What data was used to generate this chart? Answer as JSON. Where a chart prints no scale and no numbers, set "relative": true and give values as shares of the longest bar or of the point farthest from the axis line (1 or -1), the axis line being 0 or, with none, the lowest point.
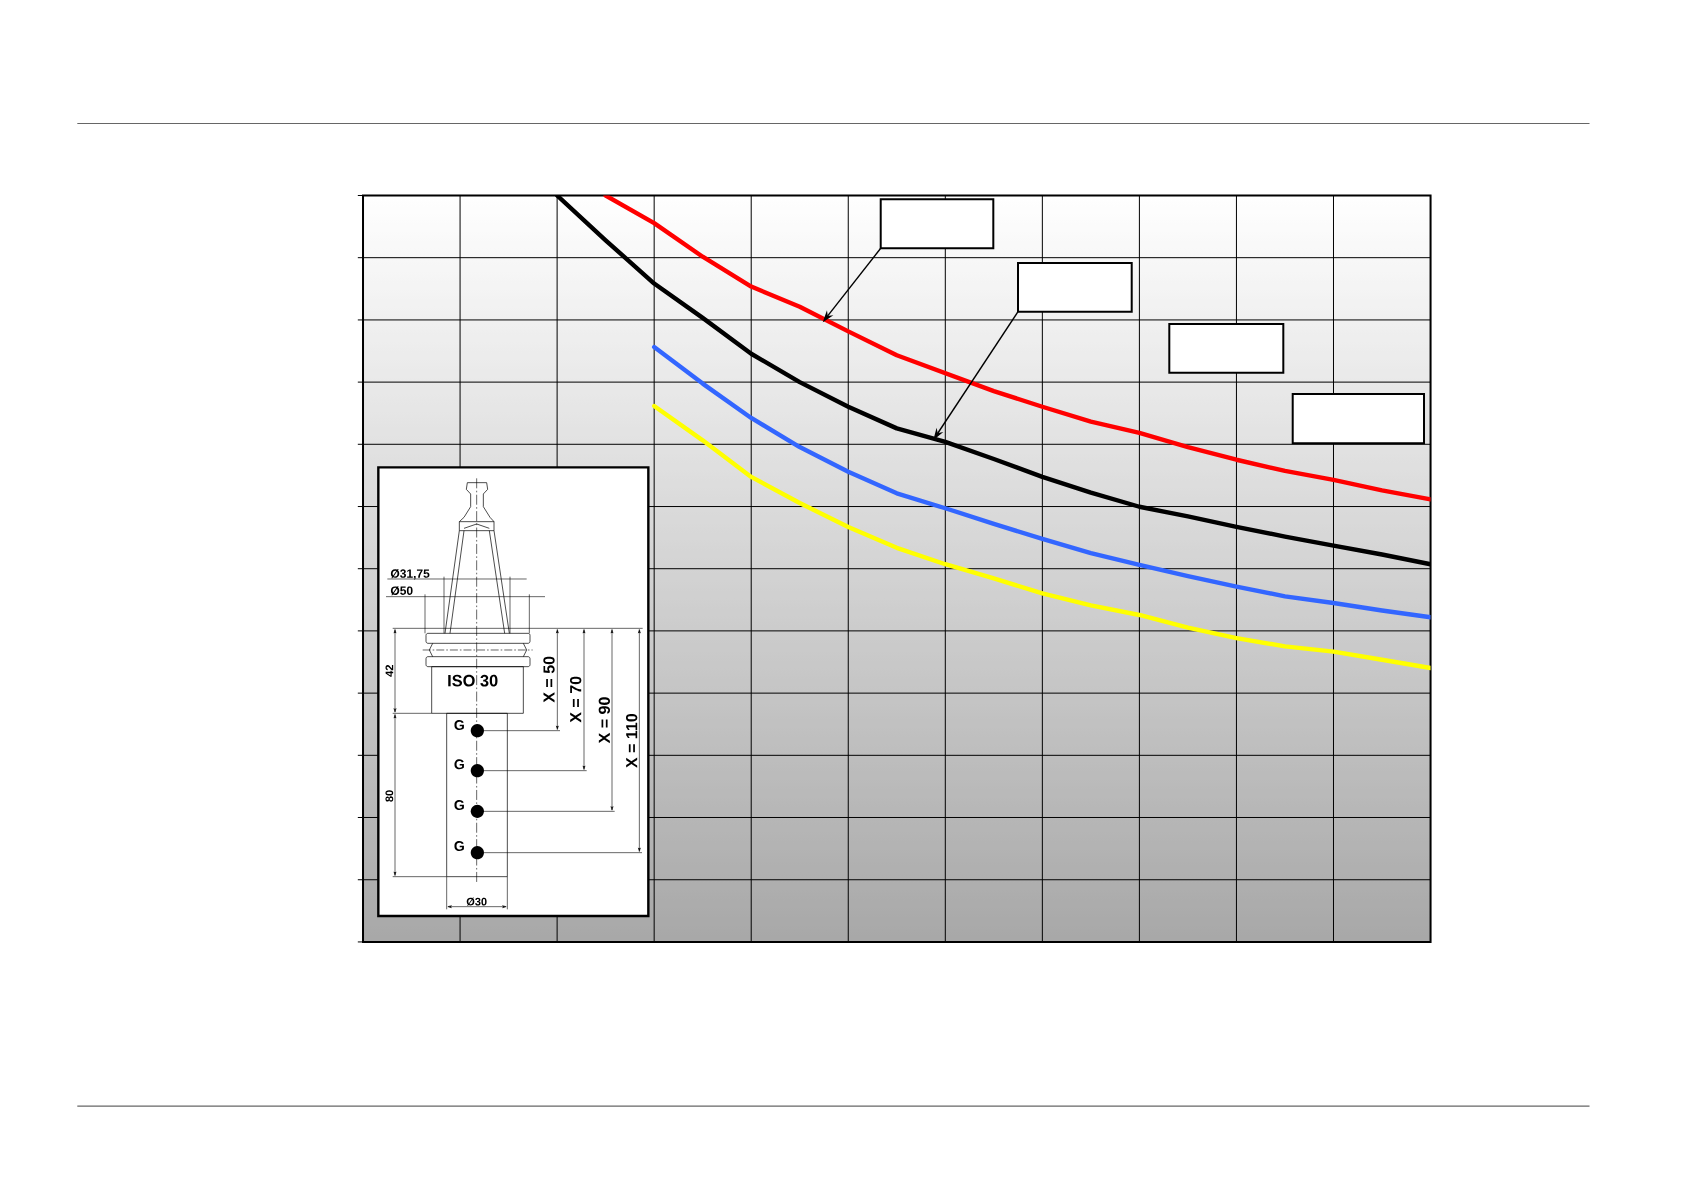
{
  "chart_data": {
    "type": "line",
    "relative": true,
    "grid": true,
    "categories": [
      null,
      null,
      null,
      null,
      null,
      null,
      null,
      null,
      null,
      null,
      null,
      null,
      null,
      null,
      null,
      null,
      null,
      null,
      null,
      null,
      null,
      null,
      null
    ],
    "series": [
      {
        "color": "#ff0000",
        "values": [
          null,
          null,
          null,
          null,
          null,
          1,
          0.963,
          0.918,
          0.878,
          0.851,
          0.818,
          0.786,
          0.762,
          0.738,
          0.717,
          0.697,
          0.682,
          0.663,
          0.646,
          0.631,
          0.619,
          0.605,
          0.593
        ]
      },
      {
        "color": "#000000",
        "values": [
          null,
          null,
          null,
          null,
          1,
          0.94,
          0.882,
          0.836,
          0.788,
          0.75,
          0.717,
          0.688,
          0.67,
          0.647,
          0.623,
          0.602,
          0.583,
          0.57,
          0.556,
          0.543,
          0.531,
          0.519,
          0.506
        ]
      },
      {
        "color": "#3366ff",
        "values": [
          null,
          null,
          null,
          null,
          null,
          null,
          0.797,
          0.748,
          0.702,
          0.663,
          0.63,
          0.601,
          0.581,
          0.56,
          0.54,
          0.521,
          0.505,
          0.49,
          0.476,
          0.463,
          0.454,
          0.444,
          0.435
        ]
      },
      {
        "color": "#ffff00",
        "values": [
          null,
          null,
          null,
          null,
          null,
          null,
          0.718,
          0.672,
          0.623,
          0.588,
          0.556,
          0.528,
          0.506,
          0.487,
          0.467,
          0.451,
          0.438,
          0.421,
          0.407,
          0.396,
          0.389,
          0.378,
          0.367
        ]
      }
    ],
    "annotations": [
      "Ø31,75",
      "Ø50",
      "42",
      "80",
      "ISO 30",
      "X = 50",
      "X = 70",
      "X = 90",
      "X = 110",
      "G",
      "G",
      "G",
      "G",
      "Ø30"
    ]
  }
}
